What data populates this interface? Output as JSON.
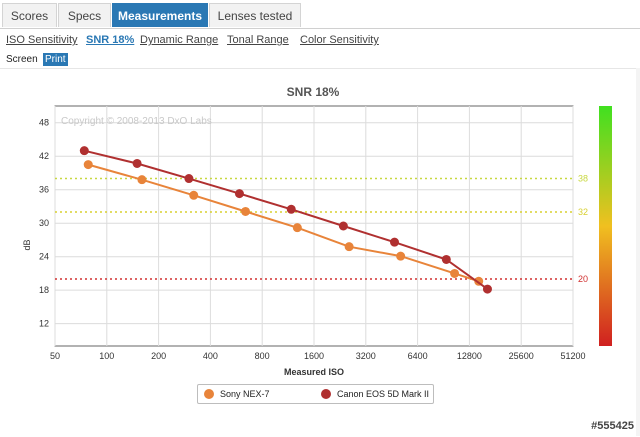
{
  "tabs": [
    {
      "label": "Scores",
      "active": false
    },
    {
      "label": "Specs",
      "active": false
    },
    {
      "label": "Measurements",
      "active": true
    },
    {
      "label": "Lenses tested",
      "active": false
    }
  ],
  "subnav": [
    {
      "label": "ISO Sensitivity",
      "active": false
    },
    {
      "label": "SNR 18%",
      "active": true
    },
    {
      "label": "Dynamic Range",
      "active": false
    },
    {
      "label": "Tonal Range",
      "active": false
    },
    {
      "label": "Color Sensitivity",
      "active": false
    }
  ],
  "view_mode": {
    "screen_label": "Screen",
    "print_label": "Print",
    "selected": "Print"
  },
  "footer_tag": "#555425",
  "colors": {
    "accent": "#2a78b4",
    "sony": "#e8843a",
    "canon": "#b03030"
  },
  "chart_data": {
    "type": "line",
    "title": "SNR 18%",
    "watermark": "Copyright © 2008-2013 DxO Labs",
    "xlabel": "Measured ISO",
    "ylabel": "dB",
    "x_scale": "log2",
    "x_ticks": [
      50,
      100,
      200,
      400,
      800,
      1600,
      3200,
      6400,
      12800,
      25600,
      51200
    ],
    "y_ticks": [
      12,
      18,
      24,
      30,
      36,
      42,
      48
    ],
    "ylim": [
      8,
      51
    ],
    "grid": true,
    "legend_position": "bottom",
    "reference_lines": [
      {
        "value": 38,
        "label": "38",
        "color": "#c8d840"
      },
      {
        "value": 32,
        "label": "32",
        "color": "#d8d030"
      },
      {
        "value": 20,
        "label": "20",
        "color": "#d03030"
      }
    ],
    "color_scale": {
      "top": "#40e020",
      "mid": "#f0c020",
      "bottom": "#d02020"
    },
    "series": [
      {
        "name": "Sony NEX-7",
        "color": "#e8843a",
        "points": [
          {
            "x": 78,
            "y": 40.5
          },
          {
            "x": 160,
            "y": 37.8
          },
          {
            "x": 320,
            "y": 35
          },
          {
            "x": 640,
            "y": 32.1
          },
          {
            "x": 1280,
            "y": 29.2
          },
          {
            "x": 2560,
            "y": 25.8
          },
          {
            "x": 5100,
            "y": 24.1
          },
          {
            "x": 10500,
            "y": 21
          },
          {
            "x": 14500,
            "y": 19.6
          }
        ]
      },
      {
        "name": "Canon EOS 5D Mark II",
        "color": "#b03030",
        "points": [
          {
            "x": 74,
            "y": 43
          },
          {
            "x": 150,
            "y": 40.7
          },
          {
            "x": 300,
            "y": 38
          },
          {
            "x": 590,
            "y": 35.3
          },
          {
            "x": 1180,
            "y": 32.5
          },
          {
            "x": 2370,
            "y": 29.5
          },
          {
            "x": 4700,
            "y": 26.6
          },
          {
            "x": 9400,
            "y": 23.5
          },
          {
            "x": 16300,
            "y": 18.2
          }
        ]
      }
    ]
  }
}
